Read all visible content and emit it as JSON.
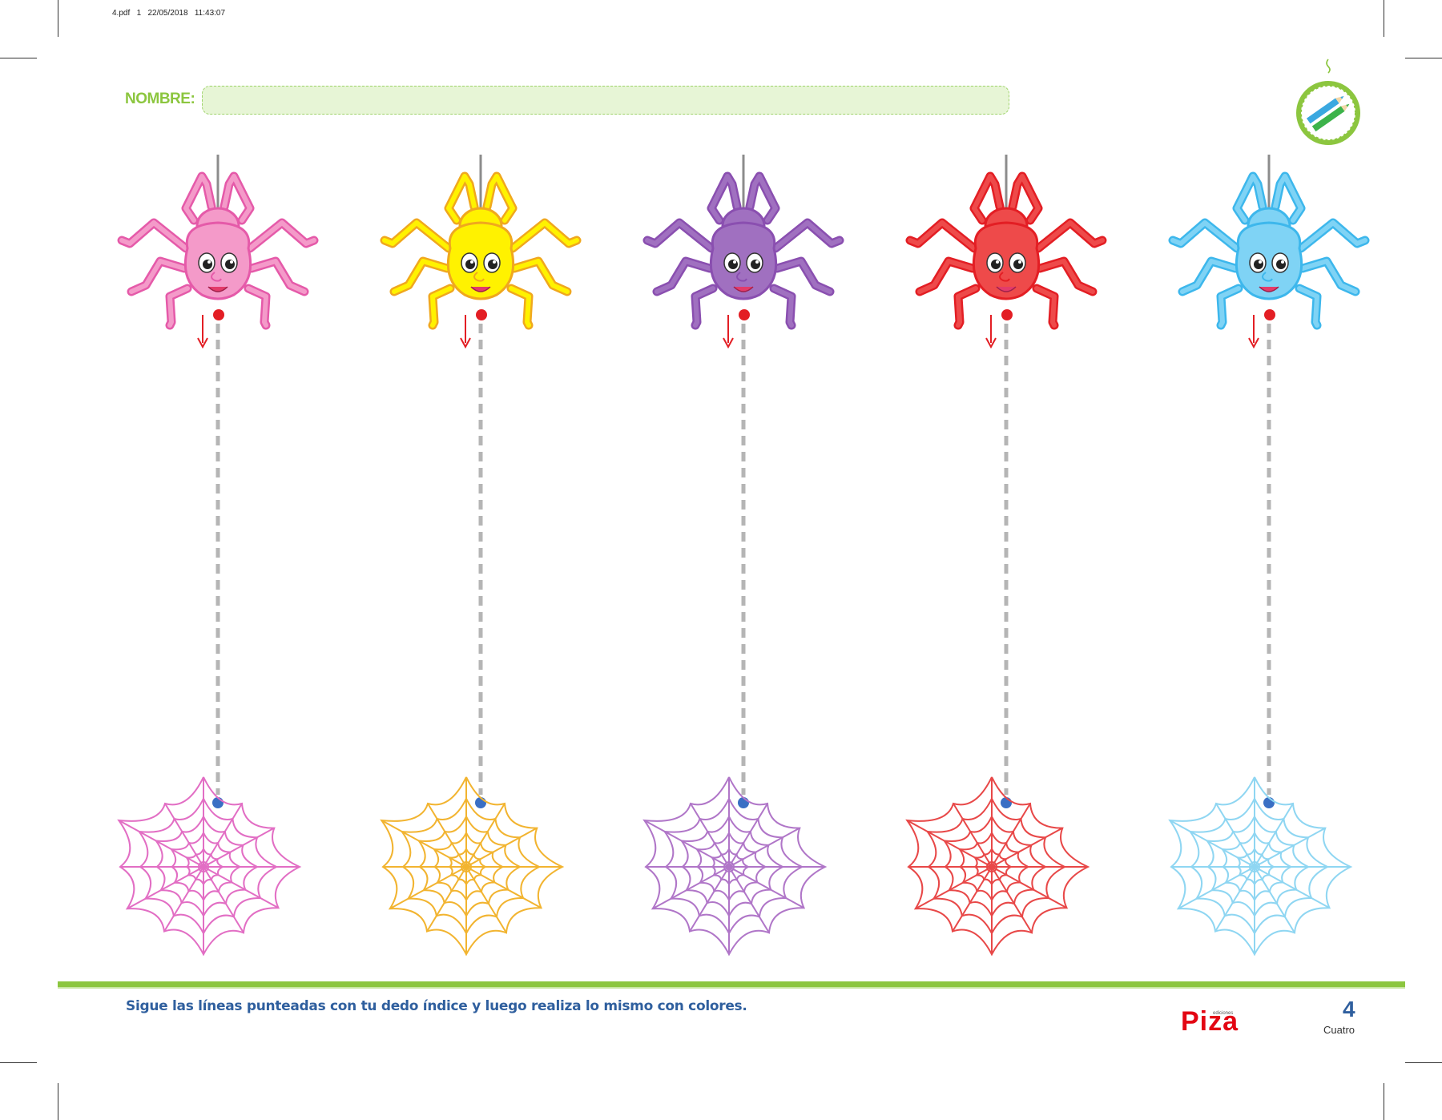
{
  "print_header": "4.pdf   1   22/05/2018   11:43:07",
  "name_label": "NOMBRE:",
  "instruction": "Sigue las líneas punteadas con tu dedo índice y luego realiza lo mismo con colores.",
  "brand": {
    "top": "ediciones",
    "name": "Piza"
  },
  "page": {
    "number": "4",
    "word": "Cuatro"
  },
  "colors": {
    "accent_green": "#8cc63f",
    "instruction_blue": "#2f5f9e",
    "start_dot": "#e31e24",
    "end_dot": "#3a6fc4",
    "guide_line": "#b5b5b5"
  },
  "spiders": [
    {
      "name": "pink",
      "body": "#f49ac9",
      "stroke": "#e55aa9",
      "web": "#e26ec4"
    },
    {
      "name": "yellow",
      "body": "#fff200",
      "stroke": "#f0a81e",
      "web": "#f2b430"
    },
    {
      "name": "purple",
      "body": "#a070c0",
      "stroke": "#8a4fb0",
      "web": "#b076c8"
    },
    {
      "name": "red",
      "body": "#ee4a4a",
      "stroke": "#e31e24",
      "web": "#e84848"
    },
    {
      "name": "blue",
      "body": "#7fd3f5",
      "stroke": "#3db7ec",
      "web": "#8fd6f2"
    }
  ],
  "badge_icon": "pencils-icon"
}
